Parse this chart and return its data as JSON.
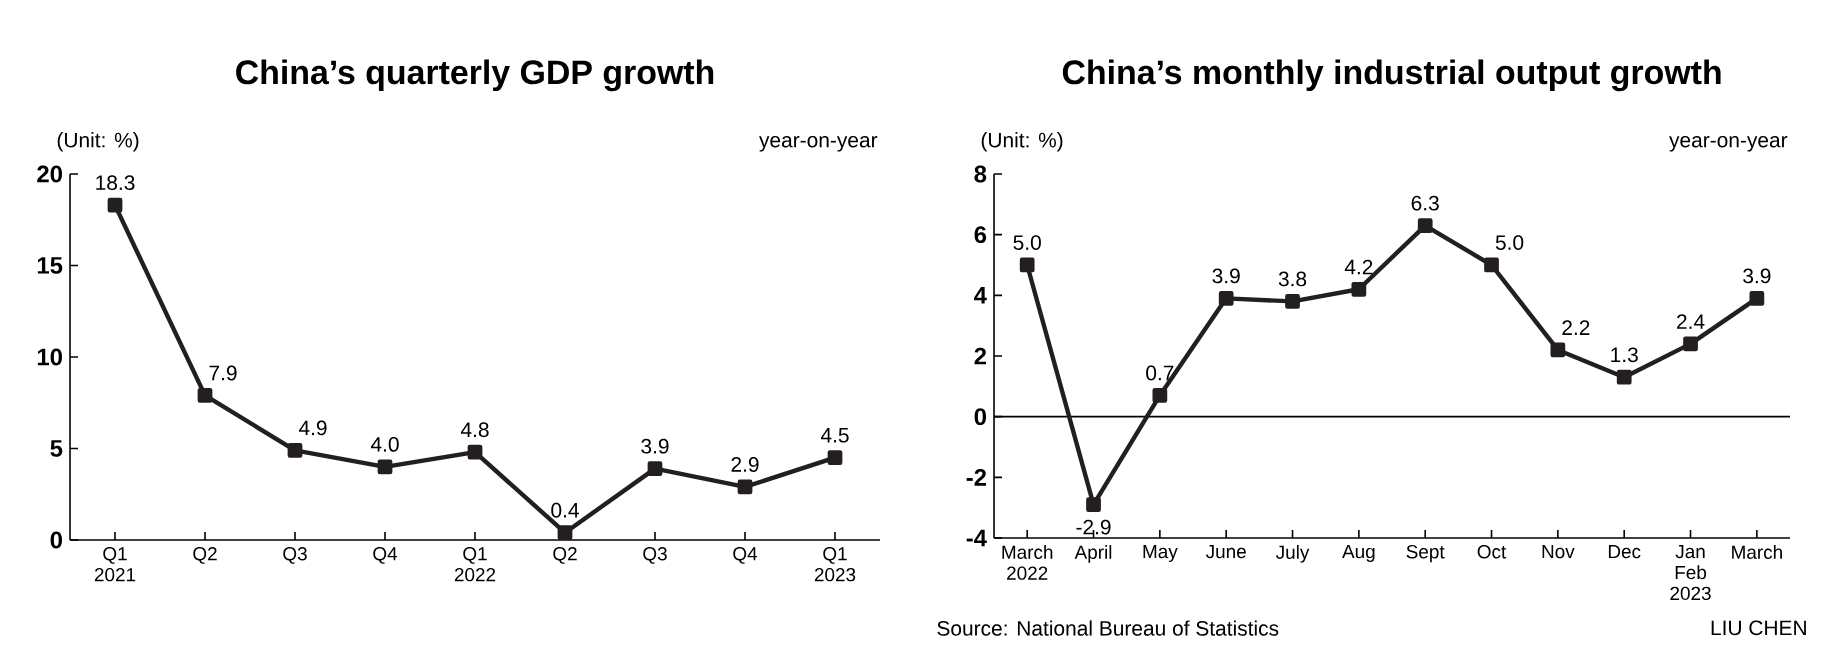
{
  "chart_data": [
    {
      "type": "line",
      "title": "China’s quarterly GDP growth",
      "categories": [
        "Q1 2021",
        "Q2",
        "Q3",
        "Q4",
        "Q1 2022",
        "Q2",
        "Q3",
        "Q4",
        "Q1 2023"
      ],
      "values": [
        18.3,
        7.9,
        4.9,
        4.0,
        4.8,
        0.4,
        3.9,
        2.9,
        4.5
      ],
      "value_labels": [
        "18.3",
        "7.9",
        "4.9",
        "4.0",
        "4.8",
        "0.4",
        "3.9",
        "2.9",
        "4.5"
      ],
      "color": "#231f20",
      "marker": "square",
      "line_style": "solid",
      "ylim": [
        0,
        20
      ],
      "yticks": [
        0,
        5,
        10,
        15,
        20
      ],
      "annotations": [
        "(Unit: %)",
        "year-on-year"
      ]
    },
    {
      "type": "line",
      "title": "China’s monthly industrial output growth",
      "categories": [
        "March 2022",
        "April",
        "May",
        "June",
        "July",
        "Aug",
        "Sept",
        "Oct",
        "Nov",
        "Dec",
        "Jan Feb 2023",
        "March"
      ],
      "values": [
        5.0,
        -2.9,
        0.7,
        3.9,
        3.8,
        4.2,
        6.3,
        5.0,
        2.2,
        1.3,
        2.4,
        3.9
      ],
      "value_labels": [
        "5.0",
        "-2.9",
        "0.7",
        "3.9",
        "3.8",
        "4.2",
        "6.3",
        "5.0",
        "2.2",
        "1.3",
        "2.4",
        "3.9"
      ],
      "color": "#231f20",
      "marker": "square",
      "line_style": "solid",
      "ylim": [
        -4,
        8
      ],
      "yticks": [
        -4,
        -2,
        0,
        2,
        4,
        6,
        8
      ],
      "annotations": [
        "(Unit: %)",
        "year-on-year",
        "Source: National Bureau of Statistics",
        "LIU CHEN"
      ]
    }
  ]
}
